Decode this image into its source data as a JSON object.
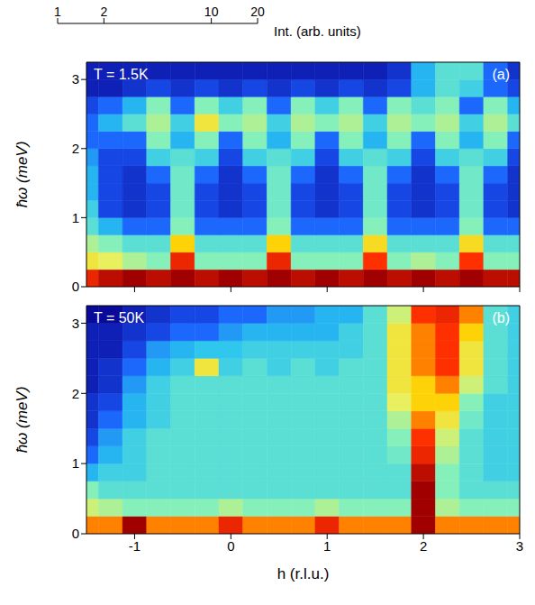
{
  "colorbar": {
    "label": "Int. (arb. units)",
    "range": [
      1,
      20
    ],
    "ticks": [
      1,
      2,
      10,
      20
    ],
    "log": true
  },
  "chart_data": [
    {
      "type": "heatmap",
      "panel": "(a)",
      "annotation": "T = 1.5K",
      "y_label": "ħω (meV)",
      "tick_labels": "y",
      "x": [
        -1.5,
        -1.25,
        -1,
        -0.75,
        -0.5,
        -0.25,
        0,
        0.25,
        0.5,
        0.75,
        1,
        1.25,
        1.5,
        1.75,
        2,
        2.25,
        2.5,
        2.75,
        3
      ],
      "y": [
        0.125,
        0.375,
        0.625,
        0.875,
        1.125,
        1.375,
        1.625,
        1.875,
        2.125,
        2.375,
        2.625,
        2.875,
        3.125
      ],
      "xlim": [
        -1.5,
        3
      ],
      "xticks": [
        -1,
        0,
        1,
        2,
        3
      ],
      "ylim": [
        0,
        3.25
      ],
      "yticks": [
        0,
        1,
        2,
        3
      ],
      "cells": [
        [
          15,
          18,
          25,
          18,
          20,
          18,
          22,
          18,
          20,
          18,
          22,
          18,
          20,
          18,
          25,
          18,
          20,
          18,
          18
        ],
        [
          8,
          7,
          5,
          4,
          15,
          4,
          4,
          4,
          15,
          4,
          4,
          4,
          14,
          4,
          5,
          4,
          14,
          4,
          4
        ],
        [
          5,
          4,
          3,
          3,
          10,
          3,
          3,
          3,
          10,
          3,
          3,
          3,
          9,
          3,
          3,
          3,
          9,
          3,
          3
        ],
        [
          3,
          2,
          1.5,
          1.5,
          4,
          1.5,
          1.5,
          1.5,
          4,
          1.5,
          1.5,
          1.5,
          4,
          1.5,
          1.5,
          1.5,
          4,
          1.5,
          1.5
        ],
        [
          2.5,
          1.3,
          1.2,
          1.3,
          3.5,
          1.3,
          1.2,
          1.3,
          3.5,
          1.3,
          1.2,
          1.3,
          3.5,
          1.3,
          1.2,
          1.3,
          3.5,
          1.3,
          1.2
        ],
        [
          2,
          1.3,
          1.2,
          1.3,
          3.5,
          1.3,
          1.2,
          1.3,
          3.5,
          1.3,
          1.2,
          1.3,
          3.5,
          1.3,
          1.2,
          1.3,
          3.5,
          1.3,
          1.2
        ],
        [
          2,
          1.3,
          1.2,
          1.5,
          3.5,
          1.5,
          1.2,
          1.5,
          3.5,
          1.5,
          1.2,
          1.5,
          3.5,
          1.5,
          1.2,
          1.5,
          3.5,
          1.5,
          1.2
        ],
        [
          1.8,
          1.3,
          1.3,
          2.5,
          3,
          2.5,
          1.3,
          2.5,
          3,
          2.5,
          1.3,
          2.5,
          3,
          2.5,
          1.3,
          2.5,
          3,
          2.5,
          1.3
        ],
        [
          1.5,
          1.5,
          1.5,
          4,
          2,
          4,
          1.5,
          4,
          2,
          4,
          1.5,
          4,
          2,
          4,
          1.5,
          4,
          2,
          4,
          1.5
        ],
        [
          1.5,
          2,
          3,
          5,
          2.5,
          8,
          4,
          5,
          2.5,
          5,
          4,
          5,
          2.5,
          5,
          4,
          5,
          2.5,
          5,
          3
        ],
        [
          1.3,
          1.5,
          2,
          4,
          1.5,
          4,
          2.5,
          4,
          1.5,
          4,
          2.5,
          4,
          1.5,
          4,
          3,
          4,
          1.5,
          4,
          2
        ],
        [
          1.1,
          1.1,
          1.2,
          1.3,
          1.2,
          1.3,
          1.2,
          1.3,
          1.2,
          1.3,
          1.2,
          1.3,
          1.2,
          1.3,
          2,
          3,
          2.5,
          1.5,
          1.3
        ],
        [
          1.1,
          1.1,
          1.1,
          1.1,
          1.1,
          1.1,
          1.1,
          1.1,
          1.1,
          1.1,
          1.1,
          1.1,
          1.1,
          1.2,
          2,
          3,
          3,
          1.5,
          1.2
        ]
      ]
    },
    {
      "type": "heatmap",
      "panel": "(b)",
      "annotation": "T = 50K",
      "y_label": "ħω (meV)",
      "x_label": "h (r.l.u.)",
      "x": [
        -1.5,
        -1.25,
        -1,
        -0.75,
        -0.5,
        -0.25,
        0,
        0.25,
        0.5,
        0.75,
        1,
        1.25,
        1.5,
        1.75,
        2,
        2.25,
        2.5,
        2.75,
        3
      ],
      "y": [
        0.125,
        0.375,
        0.625,
        0.875,
        1.125,
        1.375,
        1.625,
        1.875,
        2.125,
        2.375,
        2.625,
        2.875,
        3.125
      ],
      "xlim": [
        -1.5,
        3
      ],
      "xticks": [
        -1,
        0,
        1,
        2,
        3
      ],
      "ylim": [
        0,
        3.25
      ],
      "yticks": [
        0,
        1,
        2,
        3
      ],
      "cells": [
        [
          12,
          12,
          20,
          12,
          12,
          12,
          15,
          12,
          12,
          12,
          15,
          12,
          12,
          12,
          25,
          12,
          12,
          12,
          12
        ],
        [
          6,
          5,
          4,
          4,
          4,
          4,
          5,
          4,
          4,
          4,
          5,
          4,
          4,
          4,
          25,
          5,
          4,
          4,
          4
        ],
        [
          4,
          3,
          3,
          3,
          3,
          3,
          3,
          3,
          3,
          3,
          3,
          3,
          3,
          3,
          20,
          4,
          3,
          3,
          3
        ],
        [
          2,
          2.5,
          2.5,
          3,
          3,
          3,
          3,
          3,
          3,
          3,
          3,
          3,
          3,
          3,
          18,
          4,
          3,
          2.5,
          2.5
        ],
        [
          1.5,
          2,
          2.5,
          3,
          3,
          3,
          3,
          3,
          3,
          3,
          3,
          3,
          3,
          3.5,
          15,
          5,
          3,
          2.5,
          2.5
        ],
        [
          1.3,
          1.8,
          2.5,
          3,
          3,
          3,
          3,
          3,
          3,
          3,
          3,
          3,
          3,
          4,
          14,
          6,
          3,
          2.5,
          2.5
        ],
        [
          1.2,
          1.5,
          2,
          2.5,
          3,
          3,
          3,
          3,
          3,
          3,
          3,
          3,
          3,
          5,
          12,
          8,
          3.5,
          2.5,
          2.5
        ],
        [
          1.2,
          1.3,
          2,
          2.5,
          3,
          3,
          3,
          3,
          3,
          3,
          3,
          3,
          3,
          7,
          10,
          10,
          4,
          2.5,
          2.5
        ],
        [
          1.1,
          1.2,
          1.8,
          2.5,
          3,
          3,
          3,
          3,
          3,
          3,
          3,
          3,
          3,
          8,
          10,
          12,
          6,
          3,
          2.5
        ],
        [
          1.1,
          1.2,
          1.5,
          2,
          2.5,
          8,
          2.5,
          3,
          2.5,
          3,
          2.5,
          3,
          3,
          8,
          12,
          14,
          8,
          3,
          2.5
        ],
        [
          1.1,
          1.1,
          1.3,
          1.8,
          2,
          2.2,
          2.2,
          2.5,
          2.5,
          2.5,
          2.5,
          2.5,
          3,
          8,
          12,
          14,
          8,
          3,
          2.5
        ],
        [
          1.1,
          1.1,
          1.2,
          1.3,
          1.5,
          1.5,
          1.8,
          2,
          2,
          2,
          2,
          2.5,
          3,
          8,
          12,
          14,
          10,
          3,
          2.5
        ],
        [
          1,
          1,
          1.1,
          1.2,
          1.3,
          1.3,
          1.5,
          1.5,
          1.8,
          1.8,
          2,
          2,
          3,
          6,
          14,
          15,
          12,
          3,
          2.5
        ]
      ]
    }
  ]
}
